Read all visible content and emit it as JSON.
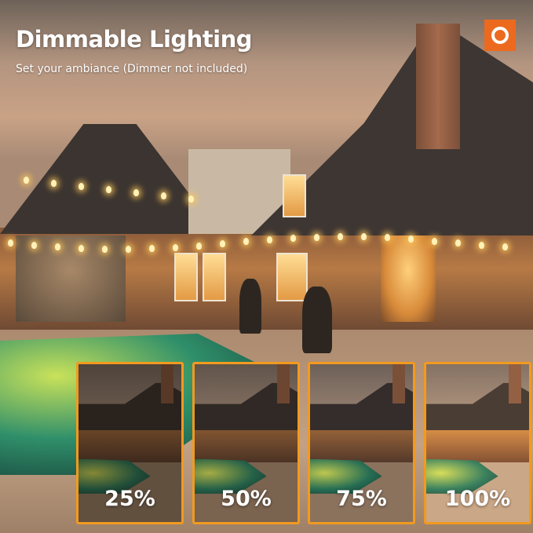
{
  "title": "Dimmable Lighting",
  "subtitle": "Set your ambiance (Dimmer not included)",
  "logo": {
    "icon": "circle-logo-icon",
    "color": "#ec6a1f"
  },
  "accent_color": "#f29a1f",
  "brightness_levels": [
    {
      "label": "25%",
      "level": 25
    },
    {
      "label": "50%",
      "level": 50
    },
    {
      "label": "75%",
      "level": 75
    },
    {
      "label": "100%",
      "level": 100
    }
  ]
}
